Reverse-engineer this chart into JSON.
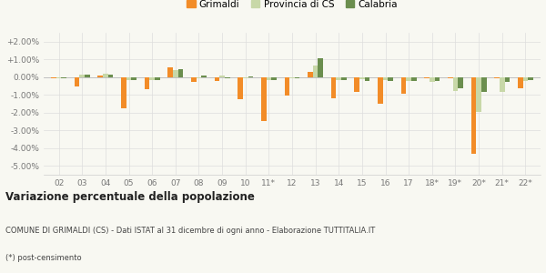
{
  "categories": [
    "02",
    "03",
    "04",
    "05",
    "06",
    "07",
    "08",
    "09",
    "10",
    "11*",
    "12",
    "13",
    "14",
    "15",
    "16",
    "17",
    "18*",
    "19*",
    "20*",
    "21*",
    "22*"
  ],
  "grimaldi": [
    -0.05,
    -0.5,
    0.1,
    -1.75,
    -0.7,
    0.55,
    -0.25,
    -0.2,
    -1.25,
    -2.45,
    -1.05,
    0.3,
    -1.2,
    -0.85,
    -1.5,
    -0.95,
    -0.05,
    -0.05,
    -4.3,
    -0.05,
    -0.65
  ],
  "provincia_cs": [
    -0.05,
    0.12,
    0.18,
    -0.15,
    -0.15,
    0.42,
    -0.08,
    0.07,
    -0.05,
    -0.18,
    -0.08,
    0.65,
    -0.15,
    -0.12,
    -0.15,
    -0.2,
    -0.28,
    -0.8,
    -1.95,
    -0.85,
    -0.2
  ],
  "calabria": [
    -0.05,
    0.12,
    0.15,
    -0.18,
    -0.18,
    0.47,
    0.08,
    -0.05,
    0.05,
    -0.18,
    -0.08,
    1.05,
    -0.18,
    -0.22,
    -0.2,
    -0.22,
    -0.22,
    -0.65,
    -0.85,
    -0.28,
    -0.15
  ],
  "grimaldi_color": "#f28c28",
  "provincia_cs_color": "#c8d8a8",
  "calabria_color": "#6b8e4e",
  "title": "Variazione percentuale della popolazione",
  "footnote1": "COMUNE DI GRIMALDI (CS) - Dati ISTAT al 31 dicembre di ogni anno - Elaborazione TUTTITALIA.IT",
  "footnote2": "(*) post-censimento",
  "ylim": [
    -5.5,
    2.5
  ],
  "yticks": [
    -5.0,
    -4.0,
    -3.0,
    -2.0,
    -1.0,
    0.0,
    1.0,
    2.0
  ],
  "ytick_labels": [
    "-5.00%",
    "-4.00%",
    "-3.00%",
    "-2.00%",
    "-1.00%",
    "0.00%",
    "+1.00%",
    "+2.00%"
  ],
  "bg_color": "#f8f8f2",
  "legend_labels": [
    "Grimaldi",
    "Provincia di CS",
    "Calabria"
  ]
}
